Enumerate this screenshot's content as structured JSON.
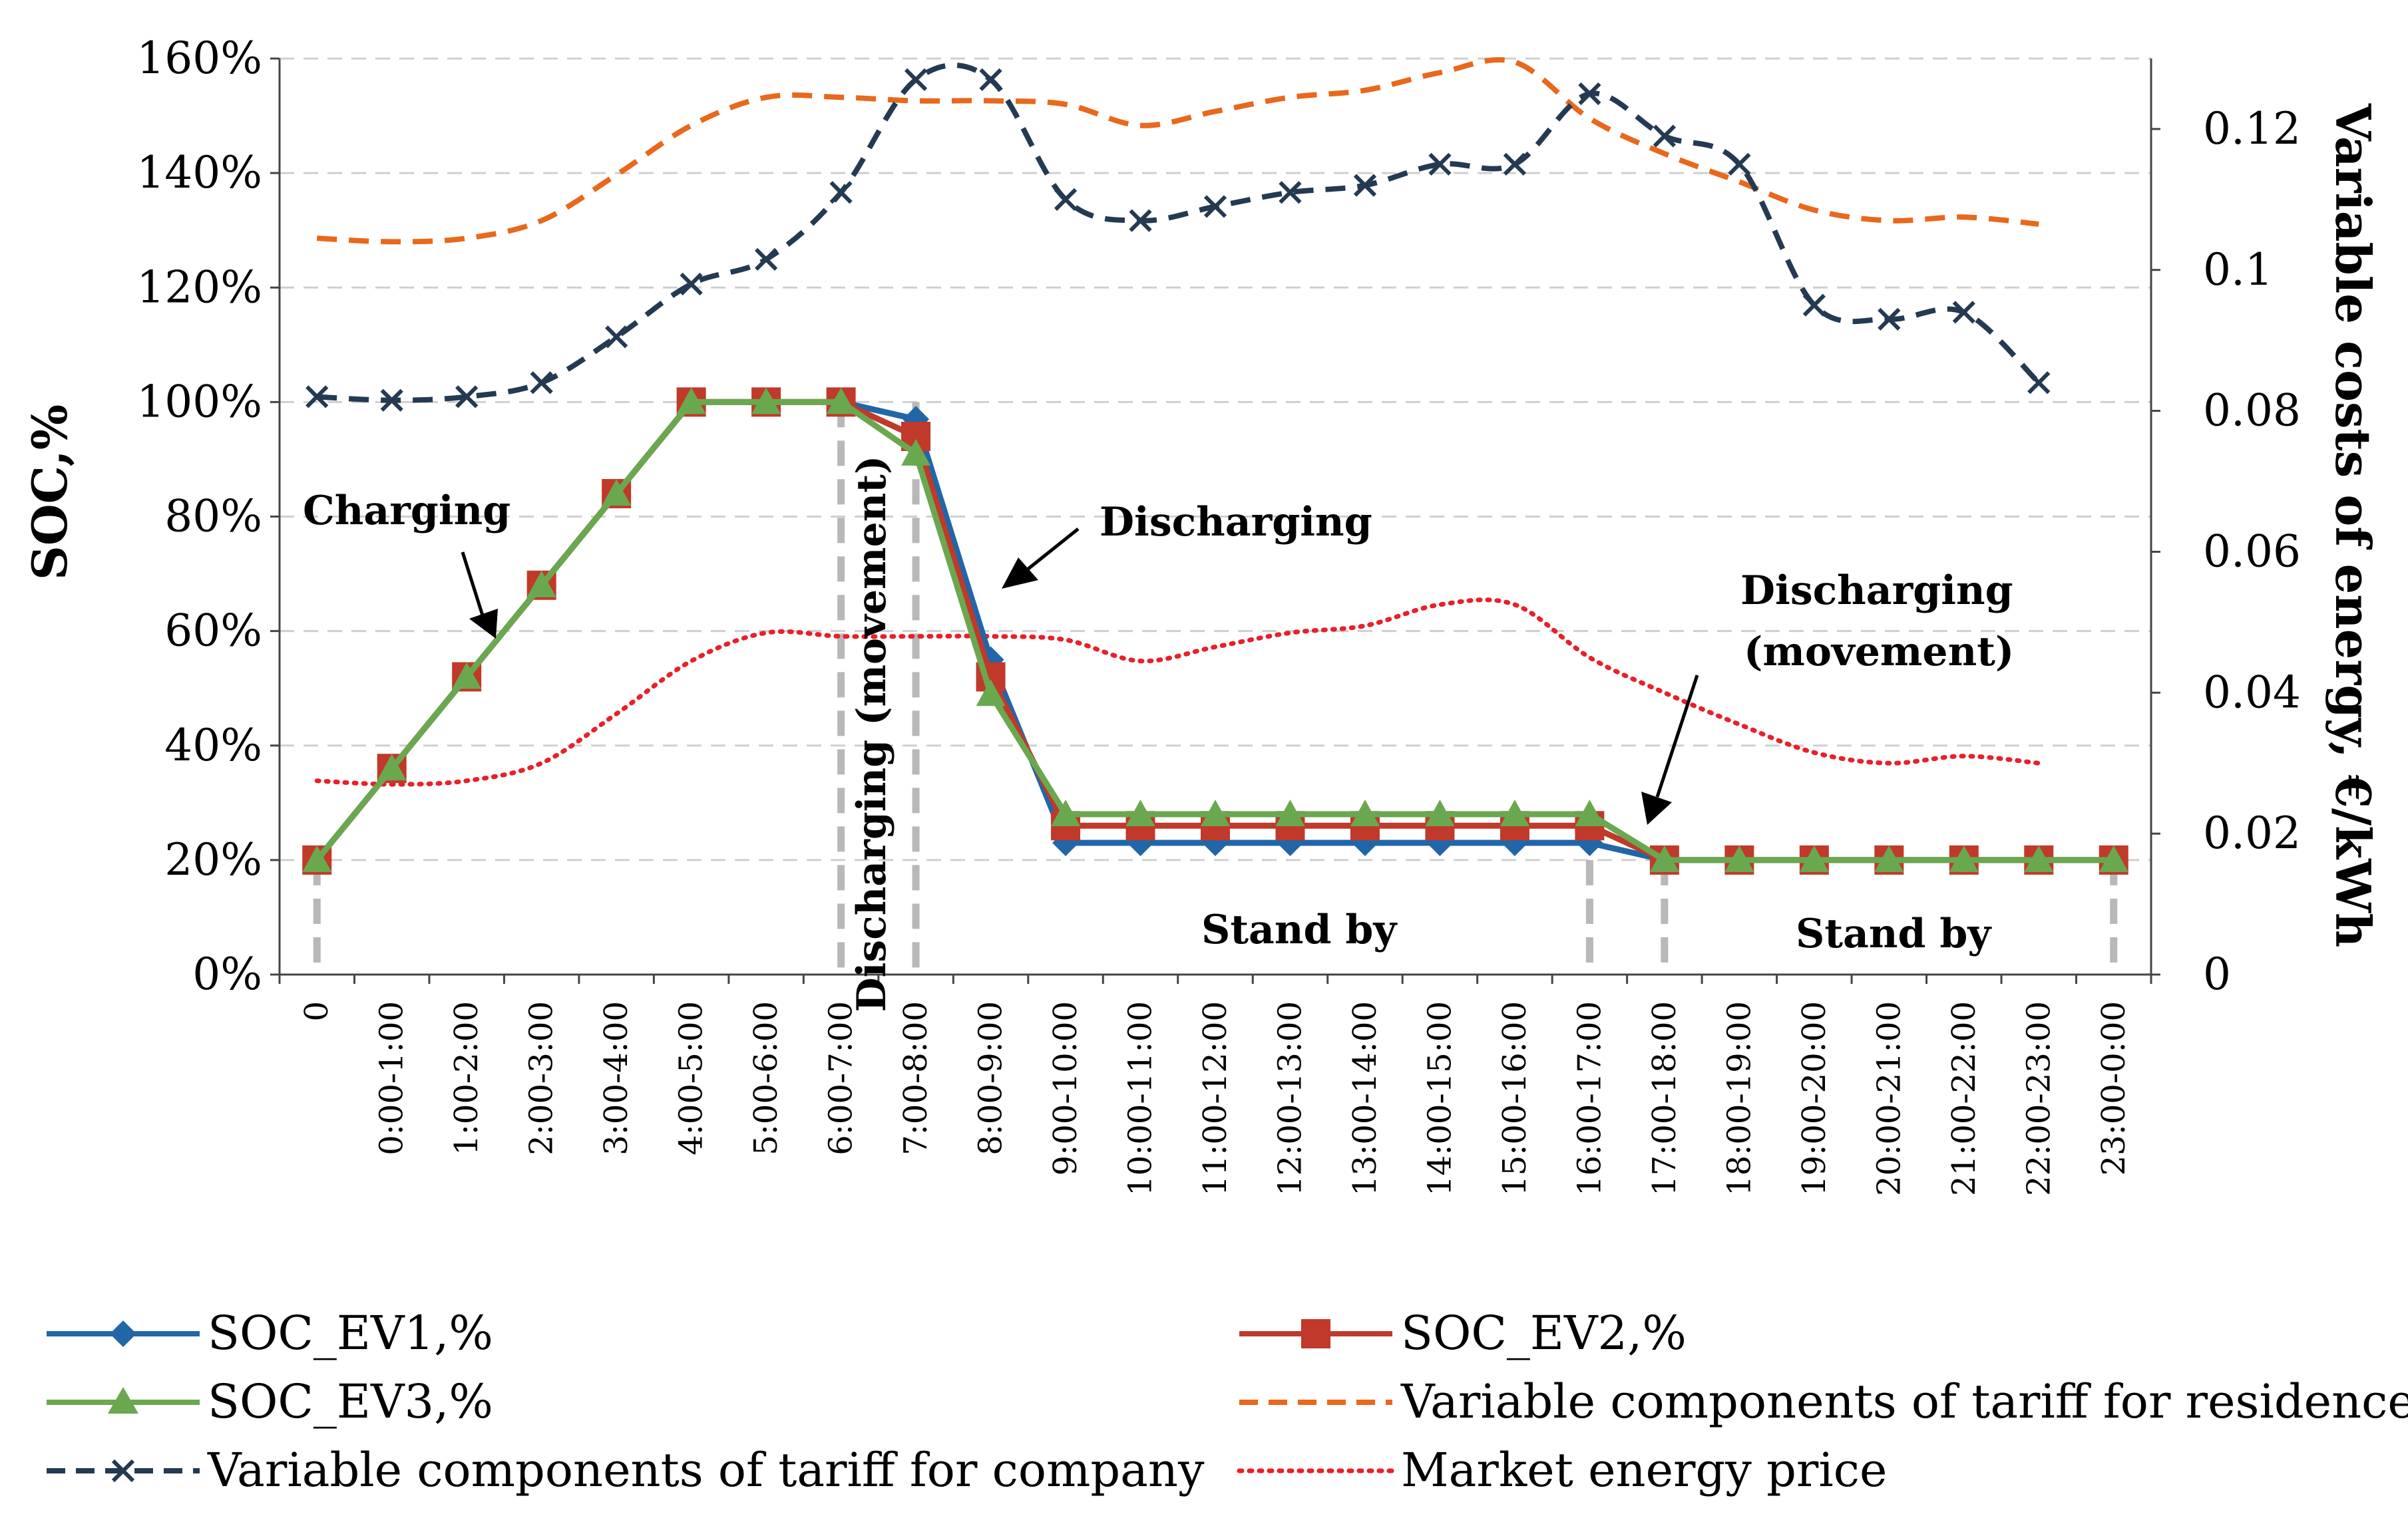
{
  "chart_data": {
    "type": "line",
    "title": "",
    "ylabel": "SOC,%",
    "y2label": "Variable costs of energy, €/kWh",
    "ylim": [
      0,
      160
    ],
    "y2lim": [
      0,
      0.13
    ],
    "y_ticks": [
      "0%",
      "20%",
      "40%",
      "60%",
      "80%",
      "100%",
      "120%",
      "140%",
      "160%"
    ],
    "y2_ticks": [
      "0",
      "0.02",
      "0.04",
      "0.06",
      "0.08",
      "0.1",
      "0.12"
    ],
    "y2_tick_values": [
      0,
      0.02,
      0.04,
      0.06,
      0.08,
      0.1,
      0.12
    ],
    "grid": true,
    "legend_position": "bottom",
    "categories": [
      "0",
      "0:00-1:00",
      "1:00-2:00",
      "2:00-3:00",
      "3:00-4:00",
      "4:00-5:00",
      "5:00-6:00",
      "6:00-7:00",
      "7:00-8:00",
      "8:00-9:00",
      "9:00-10:00",
      "10:00-11:00",
      "11:00-12:00",
      "12:00-13:00",
      "13:00-14:00",
      "14:00-15:00",
      "15:00-16:00",
      "16:00-17:00",
      "17:00-18:00",
      "18:00-19:00",
      "19:00-20:00",
      "20:00-21:00",
      "21:00-22:00",
      "22:00-23:00",
      "23:00-0:00"
    ],
    "series": [
      {
        "name": "SOC_EV1,%",
        "axis": "left",
        "color": "#2166a8",
        "marker": "diamond",
        "dash": "solid",
        "values": [
          20,
          36,
          52,
          68,
          84,
          100,
          100,
          100,
          97,
          55,
          23,
          23,
          23,
          23,
          23,
          23,
          23,
          23,
          20,
          20,
          20,
          20,
          20,
          20,
          20
        ]
      },
      {
        "name": "SOC_EV2,%",
        "axis": "left",
        "color": "#c0392b",
        "marker": "square",
        "dash": "solid",
        "values": [
          20,
          36,
          52,
          68,
          84,
          100,
          100,
          100,
          94,
          52,
          26,
          26,
          26,
          26,
          26,
          26,
          26,
          26,
          20,
          20,
          20,
          20,
          20,
          20,
          20
        ]
      },
      {
        "name": "SOC_EV3,%",
        "axis": "left",
        "color": "#6aa84f",
        "marker": "triangle",
        "dash": "solid",
        "values": [
          20,
          36,
          52,
          68,
          84,
          100,
          100,
          100,
          91,
          49,
          28,
          28,
          28,
          28,
          28,
          28,
          28,
          28,
          20,
          20,
          20,
          20,
          20,
          20,
          20
        ]
      },
      {
        "name": "Variable components of tariff for residence",
        "axis": "right",
        "color": "#e8681c",
        "marker": "none",
        "dash": "dashed",
        "values": [
          0.1045,
          0.104,
          0.1045,
          0.107,
          0.1135,
          0.1205,
          0.1245,
          0.1245,
          0.124,
          0.124,
          0.1235,
          0.1205,
          0.1225,
          0.1245,
          0.1255,
          0.128,
          0.1295,
          0.1215,
          0.1165,
          0.1125,
          0.1085,
          0.107,
          0.1075,
          0.1065,
          null
        ]
      },
      {
        "name": "Variable components of tariff for company",
        "axis": "right",
        "color": "#243a52",
        "marker": "x",
        "dash": "dashed",
        "values": [
          0.082,
          0.0815,
          0.082,
          0.084,
          0.0905,
          0.098,
          0.1015,
          0.111,
          0.127,
          0.127,
          0.11,
          0.107,
          0.109,
          0.111,
          0.112,
          0.115,
          0.115,
          0.125,
          0.119,
          0.115,
          0.095,
          0.093,
          0.094,
          0.084,
          null
        ]
      },
      {
        "name": "Market energy price",
        "axis": "right",
        "color": "#e8202a",
        "marker": "none",
        "dash": "dotted",
        "values": [
          0.0275,
          0.027,
          0.0275,
          0.03,
          0.037,
          0.0445,
          0.0485,
          0.048,
          0.048,
          0.048,
          0.0475,
          0.0445,
          0.0465,
          0.0485,
          0.0495,
          0.0525,
          0.0525,
          0.045,
          0.04,
          0.0355,
          0.0315,
          0.03,
          0.031,
          0.03,
          null
        ]
      }
    ],
    "annotations": [
      {
        "text": "Charging",
        "kind": "horizontal"
      },
      {
        "text": "Discharging",
        "kind": "horizontal"
      },
      {
        "text": "Discharging (movement)",
        "kind": "vertical"
      },
      {
        "text": "Stand by",
        "kind": "horizontal"
      },
      {
        "text": "Stand by",
        "kind": "horizontal"
      },
      {
        "text": "Discharging",
        "kind": "horizontal"
      },
      {
        "text": "(movement)",
        "kind": "horizontal"
      }
    ]
  }
}
